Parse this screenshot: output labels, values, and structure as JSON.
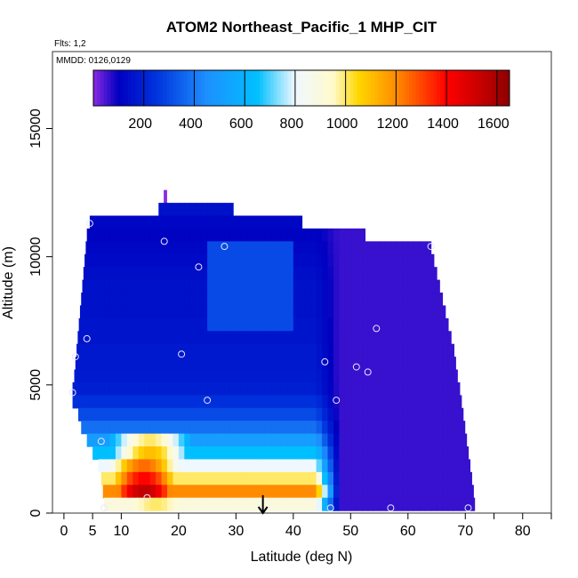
{
  "chart_data": {
    "type": "heatmap",
    "title": "ATOM2 Northeast_Pacific_1 MHP_CIT",
    "flights_note": "Flts: 1,2",
    "dates_note": "MMDD: 0126,0129",
    "xlabel": "Latitude (deg N)",
    "ylabel": "Altitude (m)",
    "xlim": [
      -2,
      85
    ],
    "ylim": [
      0,
      18000
    ],
    "x_ticks": [
      0,
      5,
      10,
      20,
      30,
      40,
      50,
      60,
      70,
      80
    ],
    "x_minor_ticks": [
      75,
      85
    ],
    "y_ticks": [
      0,
      5000,
      10000,
      15000
    ],
    "colorbar": {
      "min": 0,
      "max": 1650,
      "ticks": [
        200,
        400,
        600,
        800,
        1000,
        1200,
        1400,
        1600
      ],
      "dividers": [
        200,
        400,
        600,
        800,
        1000,
        1200,
        1400,
        1600
      ],
      "stops": [
        {
          "v": 0,
          "c": "#8a2be2"
        },
        {
          "v": 100,
          "c": "#0000c0"
        },
        {
          "v": 250,
          "c": "#0033dd"
        },
        {
          "v": 450,
          "c": "#1e90ff"
        },
        {
          "v": 650,
          "c": "#00bfff"
        },
        {
          "v": 800,
          "c": "#f0f8ff"
        },
        {
          "v": 950,
          "c": "#fffacd"
        },
        {
          "v": 1050,
          "c": "#ffd700"
        },
        {
          "v": 1200,
          "c": "#ff8c00"
        },
        {
          "v": 1400,
          "c": "#ff0000"
        },
        {
          "v": 1550,
          "c": "#c00000"
        },
        {
          "v": 1650,
          "c": "#8b0000"
        }
      ]
    },
    "curtain_rows": [
      {
        "alt": 12350,
        "lat_start": 17.4,
        "lat_end": 17.9,
        "value": 0
      },
      {
        "alt": 11850,
        "lat_start": 16.5,
        "lat_end": 29.5,
        "value": 150
      },
      {
        "alt": 11350,
        "lat_start": 4.5,
        "lat_end": 41.5,
        "value": 120
      },
      {
        "alt": 10850,
        "lat_start": 4.0,
        "lat_end": 52.5,
        "value": 110
      },
      {
        "alt": 10350,
        "lat_start": 3.8,
        "lat_end": 64.0,
        "value": 120
      },
      {
        "alt": 9850,
        "lat_start": 3.6,
        "lat_end": 64.5,
        "value": 130
      },
      {
        "alt": 9350,
        "lat_start": 3.4,
        "lat_end": 65.0,
        "value": 140
      },
      {
        "alt": 8850,
        "lat_start": 3.2,
        "lat_end": 65.5,
        "value": 150
      },
      {
        "alt": 8350,
        "lat_start": 3.0,
        "lat_end": 66.0,
        "value": 150
      },
      {
        "alt": 7850,
        "lat_start": 2.8,
        "lat_end": 66.5,
        "value": 150
      },
      {
        "alt": 7350,
        "lat_start": 2.6,
        "lat_end": 67.0,
        "value": 160
      },
      {
        "alt": 6850,
        "lat_start": 2.4,
        "lat_end": 67.5,
        "value": 160
      },
      {
        "alt": 6350,
        "lat_start": 2.2,
        "lat_end": 68.0,
        "value": 170
      },
      {
        "alt": 5850,
        "lat_start": 2.0,
        "lat_end": 68.3,
        "value": 170
      },
      {
        "alt": 5350,
        "lat_start": 1.8,
        "lat_end": 68.6,
        "value": 180
      },
      {
        "alt": 4850,
        "lat_start": 1.5,
        "lat_end": 69.0,
        "value": 190
      },
      {
        "alt": 4350,
        "lat_start": 1.5,
        "lat_end": 69.3,
        "value": 240
      },
      {
        "alt": 3850,
        "lat_start": 2.5,
        "lat_end": 69.6,
        "value": 300
      },
      {
        "alt": 3350,
        "lat_start": 3.0,
        "lat_end": 69.9,
        "value": 380
      },
      {
        "alt": 2850,
        "lat_start": 4.0,
        "lat_end": 70.2,
        "value": 500
      },
      {
        "alt": 2350,
        "lat_start": 5.0,
        "lat_end": 70.5,
        "value": 650
      },
      {
        "alt": 1850,
        "lat_start": 6.0,
        "lat_end": 70.8,
        "value": 800
      },
      {
        "alt": 1350,
        "lat_start": 6.5,
        "lat_end": 71.1,
        "value": 1000
      },
      {
        "alt": 850,
        "lat_start": 6.8,
        "lat_end": 71.4,
        "value": 1200
      },
      {
        "alt": 350,
        "lat_start": 7.0,
        "lat_end": 71.6,
        "value": 900
      }
    ],
    "warm_core": [
      {
        "alt": 2850,
        "lat": 15,
        "spread": 9,
        "peak": 1000
      },
      {
        "alt": 2350,
        "lat": 15,
        "spread": 9,
        "peak": 1100
      },
      {
        "alt": 1850,
        "lat": 14,
        "spread": 9,
        "peak": 1250
      },
      {
        "alt": 1350,
        "lat": 14,
        "spread": 9,
        "peak": 1400
      },
      {
        "alt": 850,
        "lat": 14,
        "spread": 9,
        "peak": 1550
      },
      {
        "alt": 350,
        "lat": 16,
        "spread": 12,
        "peak": 1000
      }
    ],
    "south_boundary_value": 1200,
    "north_boundary_value": 60,
    "purple_region_start_lat": 44,
    "sample_points": [
      {
        "lat": 4.5,
        "alt": 11300
      },
      {
        "lat": 17.5,
        "alt": 10600
      },
      {
        "lat": 28,
        "alt": 10400
      },
      {
        "lat": 23.5,
        "alt": 9600
      },
      {
        "lat": 64,
        "alt": 10400
      },
      {
        "lat": 4,
        "alt": 6800
      },
      {
        "lat": 2,
        "alt": 6100
      },
      {
        "lat": 20.5,
        "alt": 6200
      },
      {
        "lat": 54.5,
        "alt": 7200
      },
      {
        "lat": 45.5,
        "alt": 5900
      },
      {
        "lat": 51,
        "alt": 5700
      },
      {
        "lat": 53,
        "alt": 5500
      },
      {
        "lat": 1.5,
        "alt": 4700
      },
      {
        "lat": 25,
        "alt": 4400
      },
      {
        "lat": 47.5,
        "alt": 4400
      },
      {
        "lat": 6.5,
        "alt": 2800
      },
      {
        "lat": 14.5,
        "alt": 600
      },
      {
        "lat": 7,
        "alt": 200
      },
      {
        "lat": 46.5,
        "alt": 200
      },
      {
        "lat": 57,
        "alt": 200
      },
      {
        "lat": 70.5,
        "alt": 200
      }
    ],
    "arrow_marker": {
      "lat": 34.7,
      "alt_top": 700,
      "alt_bottom": 0
    }
  }
}
